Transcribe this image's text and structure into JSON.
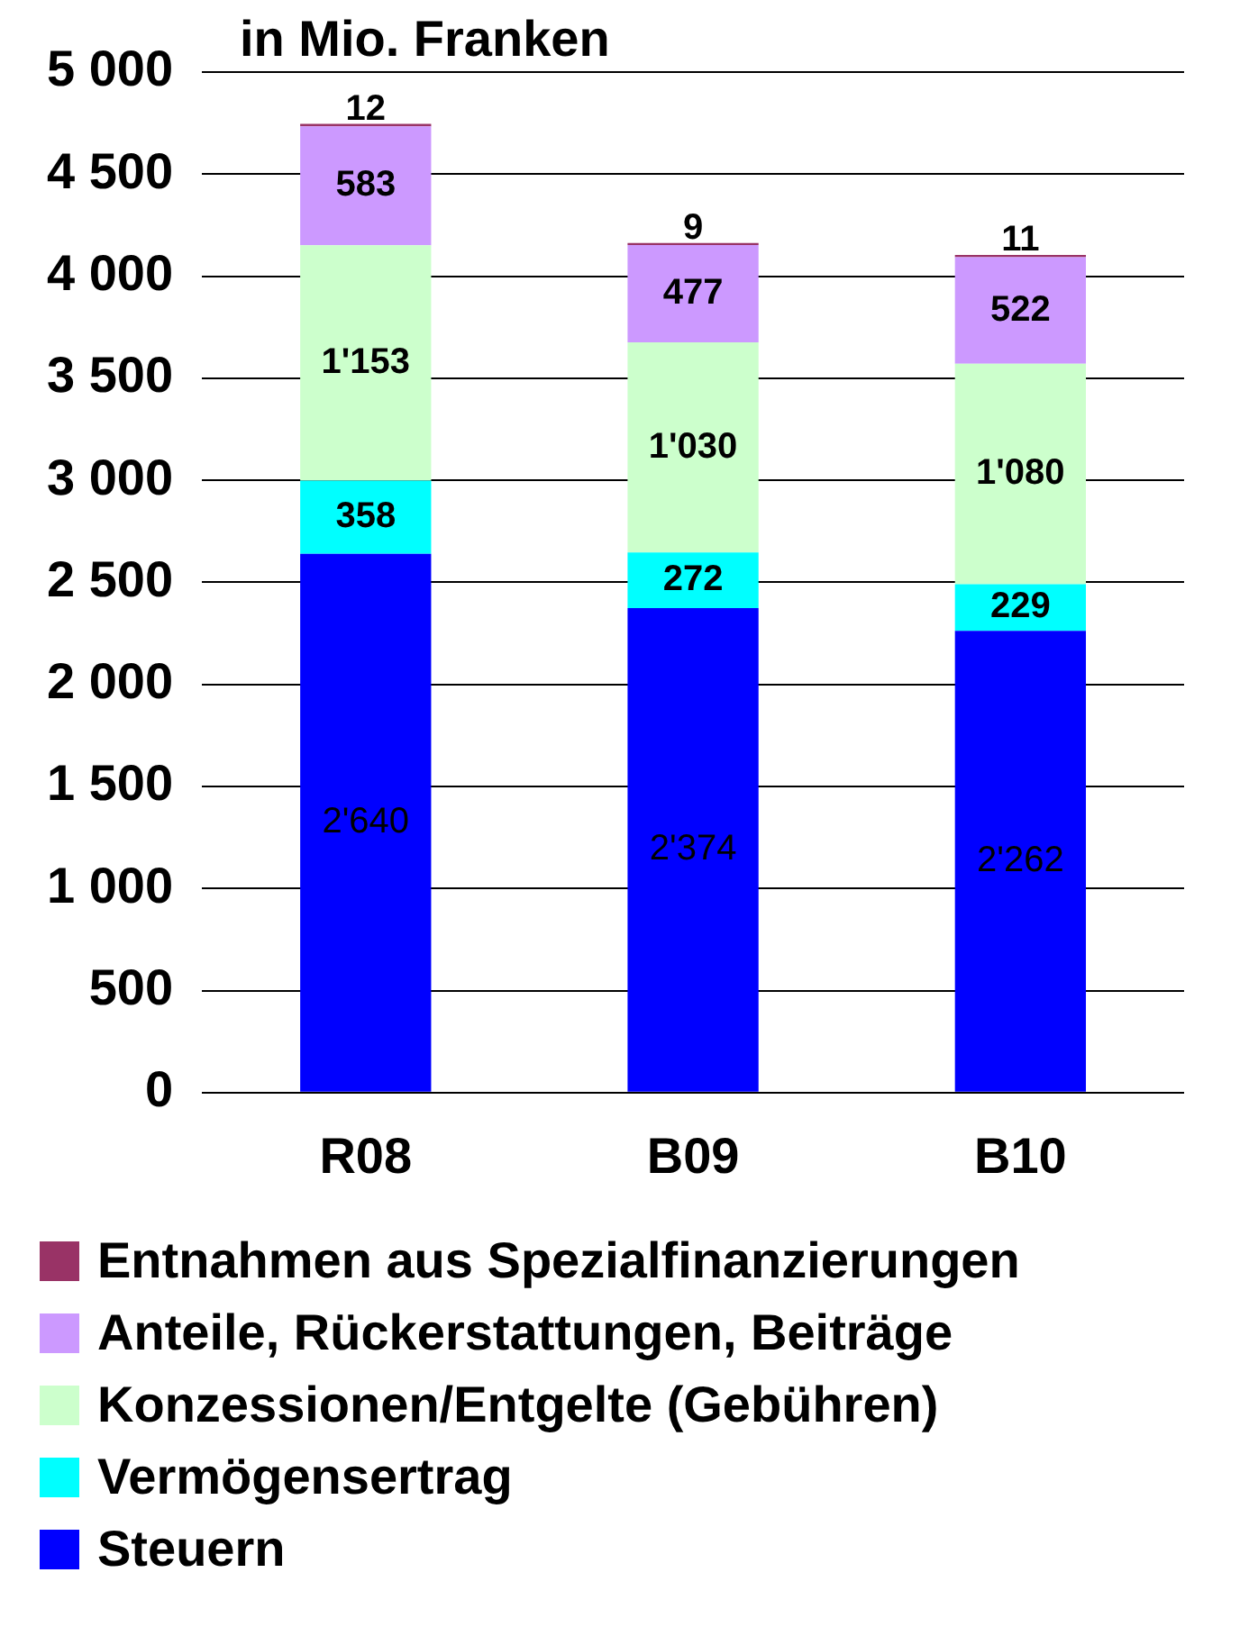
{
  "chart_data": {
    "type": "bar",
    "stacked": true,
    "ylabel": "in Mio. Franken",
    "categories": [
      "R08",
      "B09",
      "B10"
    ],
    "series": [
      {
        "name": "Steuern",
        "color": "#0000ff",
        "values": [
          2640,
          2374,
          2262
        ],
        "value_labels": [
          "2'640",
          "2'374",
          "2'262"
        ]
      },
      {
        "name": "Vermögensertrag",
        "color": "#00ffff",
        "values": [
          358,
          272,
          229
        ],
        "value_labels": [
          "358",
          "272",
          "229"
        ]
      },
      {
        "name": "Konzessionen/Entgelte (Gebühren)",
        "color": "#ccffcc",
        "values": [
          1153,
          1030,
          1080
        ],
        "value_labels": [
          "1'153",
          "1'030",
          "1'080"
        ]
      },
      {
        "name": "Anteile, Rückerstattungen, Beiträge",
        "color": "#cc99ff",
        "values": [
          583,
          477,
          522
        ],
        "value_labels": [
          "583",
          "477",
          "522"
        ]
      },
      {
        "name": "Entnahmen aus Spezialfinanzierungen",
        "color": "#993366",
        "values": [
          12,
          9,
          11
        ],
        "value_labels": [
          "12",
          "9",
          "11"
        ]
      }
    ],
    "ylim": [
      0,
      5000
    ],
    "yticks": [
      0,
      500,
      {
        "value": 1000,
        "label": "1 000"
      },
      {
        "value": 1500,
        "label": "1 500"
      },
      {
        "value": 2000,
        "label": "2 000"
      },
      {
        "value": 2500,
        "label": "2 500"
      },
      {
        "value": 3000,
        "label": "3 000"
      },
      {
        "value": 3500,
        "label": "3 500"
      },
      {
        "value": 4000,
        "label": "4 000"
      },
      {
        "value": 4500,
        "label": "4 500"
      },
      {
        "value": 5000,
        "label": "5 000"
      }
    ],
    "grid": "y",
    "legend": "bottom"
  }
}
